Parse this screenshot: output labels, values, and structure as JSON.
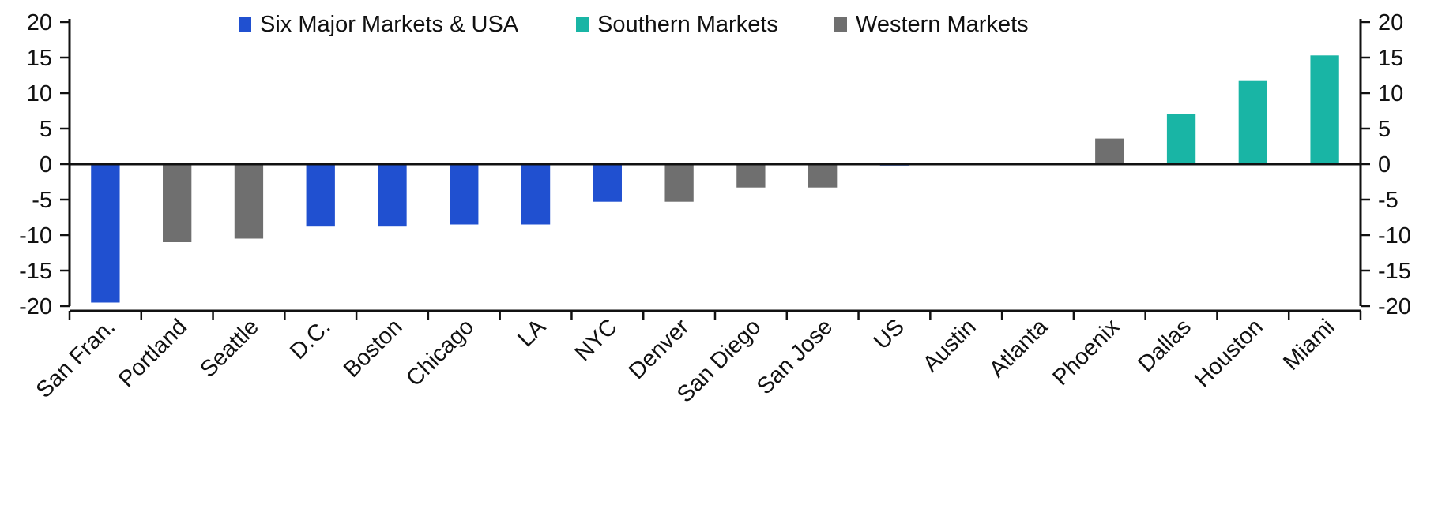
{
  "chart_data": {
    "type": "bar",
    "title": "",
    "xlabel": "",
    "ylabel": "",
    "ylim": [
      -20,
      20
    ],
    "yticks": [
      20,
      15,
      10,
      5,
      0,
      -5,
      -10,
      -15,
      -20
    ],
    "ytick_labels_left": [
      "20",
      "15",
      "10",
      "5",
      "0",
      "-5",
      "-10",
      "-15",
      "-20"
    ],
    "ytick_labels_right": [
      "20",
      "15",
      "10",
      "5",
      "0",
      "-5",
      "-10",
      "-15",
      "-20"
    ],
    "legend_position": "top-center",
    "grid": false,
    "series_colors": {
      "Six Major Markets & USA": "#2050d0",
      "Southern Markets": "#19b5a5",
      "Western Markets": "#6f6f6f"
    },
    "legend": [
      "Six Major Markets & USA",
      "Southern Markets",
      "Western Markets"
    ],
    "categories": [
      "San Fran.",
      "Portland",
      "Seattle",
      "D.C.",
      "Boston",
      "Chicago",
      "LA",
      "NYC",
      "Denver",
      "San Diego",
      "San Jose",
      "US",
      "Austin",
      "Atlanta",
      "Phoenix",
      "Dallas",
      "Houston",
      "Miami"
    ],
    "values": [
      -19.5,
      -11.0,
      -10.5,
      -8.8,
      -8.8,
      -8.5,
      -8.5,
      -5.3,
      -5.3,
      -3.3,
      -3.3,
      -0.2,
      -0.1,
      0.2,
      3.6,
      7.0,
      11.7,
      15.3
    ],
    "groups": [
      "Six Major Markets & USA",
      "Western Markets",
      "Western Markets",
      "Six Major Markets & USA",
      "Six Major Markets & USA",
      "Six Major Markets & USA",
      "Six Major Markets & USA",
      "Six Major Markets & USA",
      "Western Markets",
      "Western Markets",
      "Western Markets",
      "Six Major Markets & USA",
      "Southern Markets",
      "Southern Markets",
      "Western Markets",
      "Southern Markets",
      "Southern Markets",
      "Southern Markets"
    ]
  }
}
